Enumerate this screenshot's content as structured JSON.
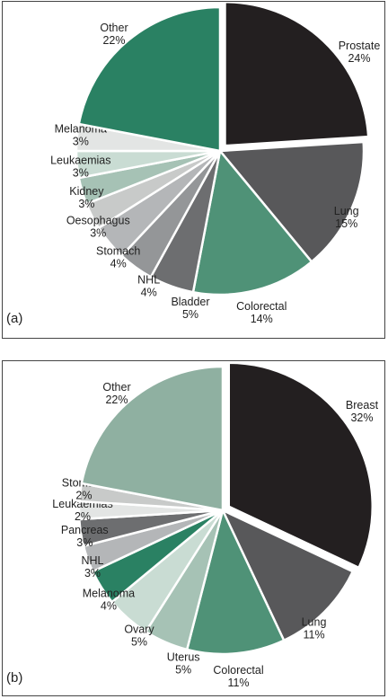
{
  "chart_data": [
    {
      "type": "pie",
      "panel_label": "(a)",
      "colors": [
        "#231f20",
        "#58585a",
        "#4f9277",
        "#6d6e70",
        "#949698",
        "#b4b6b8",
        "#c8cac9",
        "#a6c2b5",
        "#c9dcd3",
        "#e3e5e4",
        "#2a8163",
        "#8fb0a1"
      ],
      "slices": [
        {
          "label": "Prostate",
          "value": 24,
          "value_text": "24%"
        },
        {
          "label": "Lung",
          "value": 15,
          "value_text": "15%"
        },
        {
          "label": "Colorectal",
          "value": 14,
          "value_text": "14%"
        },
        {
          "label": "Bladder",
          "value": 5,
          "value_text": "5%"
        },
        {
          "label": "NHL",
          "value": 4,
          "value_text": "4%"
        },
        {
          "label": "Stomach",
          "value": 4,
          "value_text": "4%"
        },
        {
          "label": "Oesophagus",
          "value": 3,
          "value_text": "3%"
        },
        {
          "label": "Kidney",
          "value": 3,
          "value_text": "3%"
        },
        {
          "label": "Leukaemias",
          "value": 3,
          "value_text": "3%"
        },
        {
          "label": "Melanoma",
          "value": 3,
          "value_text": "3%"
        },
        {
          "label": "Other",
          "value": 22,
          "value_text": "22%"
        }
      ]
    },
    {
      "type": "pie",
      "panel_label": "(b)",
      "colors": [
        "#231f20",
        "#58585a",
        "#4f9277",
        "#a6c2b5",
        "#c9dcd3",
        "#2a8163",
        "#b4b6b8",
        "#6d6e70",
        "#e3e5e4",
        "#c8cac9",
        "#8fb0a1"
      ],
      "slices": [
        {
          "label": "Breast",
          "value": 32,
          "value_text": "32%"
        },
        {
          "label": "Lung",
          "value": 11,
          "value_text": "11%"
        },
        {
          "label": "Colorectal",
          "value": 11,
          "value_text": "11%"
        },
        {
          "label": "Uterus",
          "value": 5,
          "value_text": "5%"
        },
        {
          "label": "Ovary",
          "value": 5,
          "value_text": "5%"
        },
        {
          "label": "Melanoma",
          "value": 4,
          "value_text": "4%"
        },
        {
          "label": "NHL",
          "value": 3,
          "value_text": "3%"
        },
        {
          "label": "Pancreas",
          "value": 3,
          "value_text": "3%"
        },
        {
          "label": "Leukaemias",
          "value": 2,
          "value_text": "2%"
        },
        {
          "label": "Stomach",
          "value": 2,
          "value_text": "2%"
        },
        {
          "label": "Other",
          "value": 22,
          "value_text": "22%"
        }
      ]
    }
  ]
}
